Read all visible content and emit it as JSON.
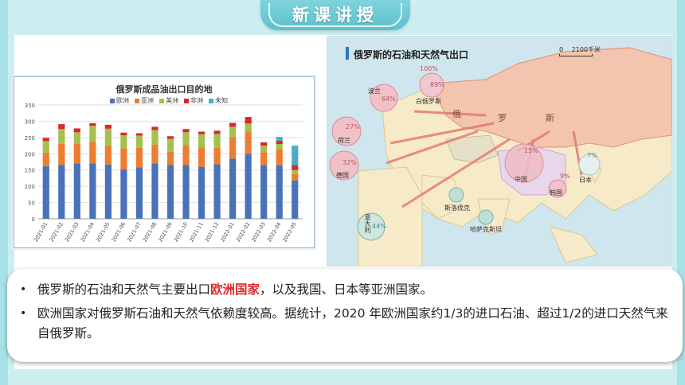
{
  "header": {
    "title": "新课讲授"
  },
  "chart": {
    "title": "俄罗斯成品油出口目的地"
  },
  "chart_data": {
    "type": "bar",
    "title": "俄罗斯成品油出口目的地",
    "categories": [
      "2021-01",
      "2021-02",
      "2021-03",
      "2021-04",
      "2021-05",
      "2021-06",
      "2021-07",
      "2021-08",
      "2021-09",
      "2021-10",
      "2021-11",
      "2021-12",
      "2022-01",
      "2022-02",
      "2022-03",
      "2022-04",
      "2022-05"
    ],
    "ylim": [
      0,
      350
    ],
    "yticks": [
      0,
      50,
      100,
      150,
      200,
      250,
      300,
      350
    ],
    "stacked": true,
    "series": [
      {
        "name": "欧洲",
        "color": "#4a72b8",
        "values": [
          162,
          166,
          170,
          170,
          167,
          152,
          158,
          170,
          166,
          166,
          160,
          168,
          185,
          200,
          165,
          165,
          118
        ]
      },
      {
        "name": "亚洲",
        "color": "#ed7d31",
        "values": [
          42,
          65,
          60,
          68,
          58,
          65,
          60,
          58,
          40,
          60,
          60,
          50,
          65,
          68,
          40,
          50,
          20
        ]
      },
      {
        "name": "美洲",
        "color": "#a5c04e",
        "values": [
          35,
          45,
          36,
          48,
          52,
          40,
          38,
          45,
          40,
          40,
          40,
          43,
          33,
          25,
          20,
          15,
          12
        ]
      },
      {
        "name": "非洲",
        "color": "#d9272e",
        "values": [
          10,
          15,
          12,
          8,
          12,
          8,
          7,
          10,
          8,
          10,
          8,
          10,
          12,
          20,
          10,
          10,
          15
        ]
      },
      {
        "name": "未知",
        "color": "#4bacc6",
        "values": [
          0,
          0,
          0,
          0,
          0,
          0,
          0,
          0,
          0,
          0,
          0,
          0,
          0,
          0,
          0,
          12,
          60
        ]
      }
    ]
  },
  "map": {
    "title": "俄罗斯的石油和天然气出口",
    "scale_zero": "0",
    "scale_text": "2100千米",
    "country_labels": {
      "russia_1": "俄",
      "russia_2": "罗",
      "russia_3": "斯",
      "belarus": "白俄罗斯",
      "poland": "波兰",
      "netherlands": "荷兰",
      "germany": "德国",
      "italy": "意大利",
      "slovakia": "斯洛伐克",
      "kazakhstan": "哈萨克斯坦",
      "china": "中国",
      "korea": "韩国",
      "japan": "日本"
    },
    "percent_labels": {
      "top_100": "100%",
      "top_89": "89%",
      "poland": "64%",
      "netherlands": "27%",
      "germany": "32%",
      "italy": "44%",
      "china": "15%",
      "korea": "9%",
      "japan": "7%"
    }
  },
  "notes": [
    {
      "pre": "俄罗斯的石油和天然气主要出口",
      "highlight": "欧洲国家",
      "post": "，以及我国、日本等亚洲国家。"
    },
    {
      "text": "欧洲国家对俄罗斯石油和天然气依赖度较高。据统计，2020 年欧洲国家约1/3的进口石油、超过1/2的进口天然气来自俄罗斯。"
    }
  ],
  "colors": {
    "accent": "#5cc1cd",
    "highlight": "#e02a2a"
  }
}
